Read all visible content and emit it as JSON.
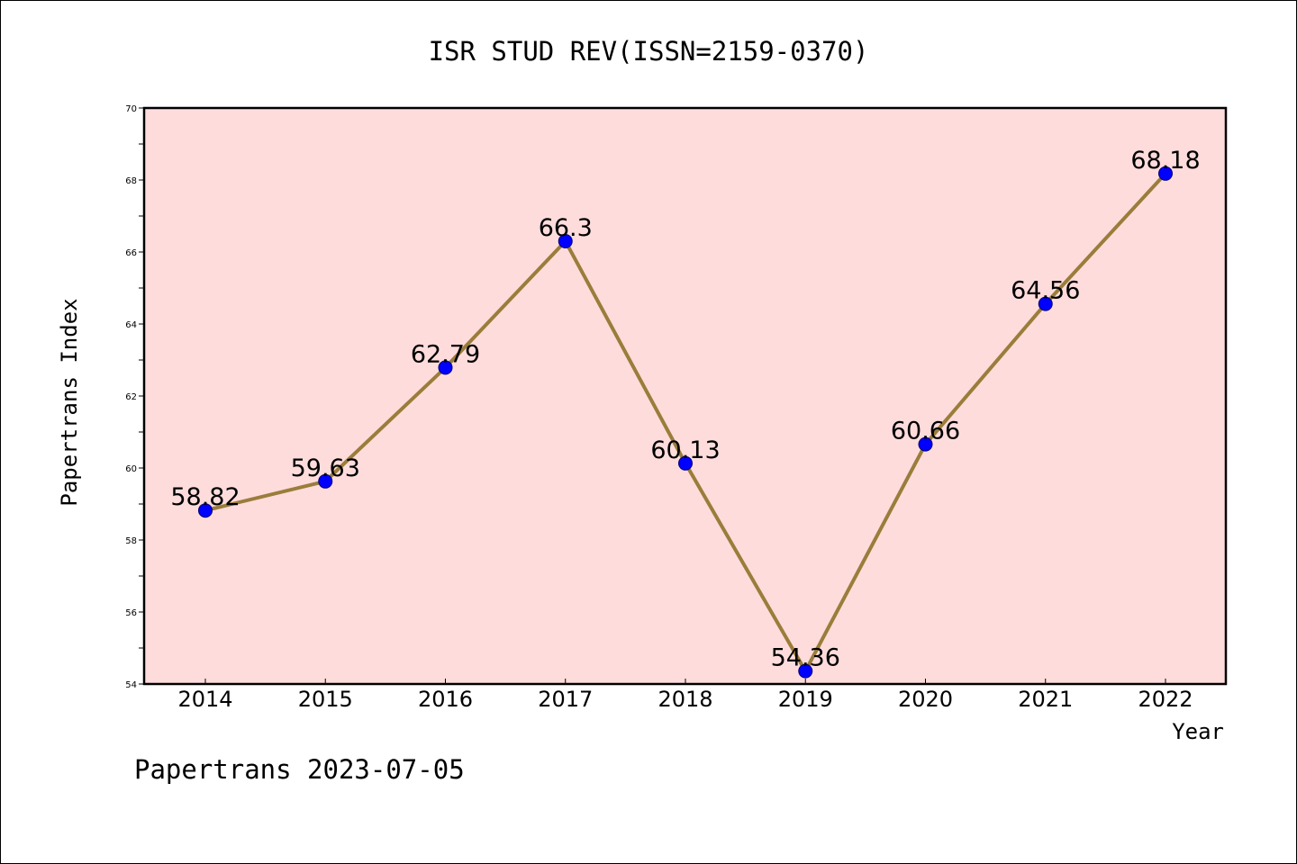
{
  "chart_data": {
    "type": "line",
    "title": "ISR STUD REV(ISSN=2159-0370)",
    "xlabel": "Year",
    "ylabel": "Papertrans Index",
    "categories": [
      "2014",
      "2015",
      "2016",
      "2017",
      "2018",
      "2019",
      "2020",
      "2021",
      "2022"
    ],
    "values": [
      58.82,
      59.63,
      62.79,
      66.3,
      60.13,
      54.36,
      60.66,
      64.56,
      68.18
    ],
    "value_labels": [
      "58.82",
      "59.63",
      "62.79",
      "66.3",
      "60.13",
      "54.36",
      "60.66",
      "64.56",
      "68.18"
    ],
    "ylim": [
      54,
      70
    ],
    "yticks": [
      "54",
      "56",
      "58",
      "60",
      "62",
      "64",
      "66",
      "68",
      "70"
    ],
    "grid": false,
    "colors": {
      "plot_background": "#ffdcdc",
      "line": "#9a7d3a",
      "marker": "#0000ff",
      "axes": "#000000"
    }
  },
  "footer": {
    "text": "Papertrans 2023-07-05"
  }
}
